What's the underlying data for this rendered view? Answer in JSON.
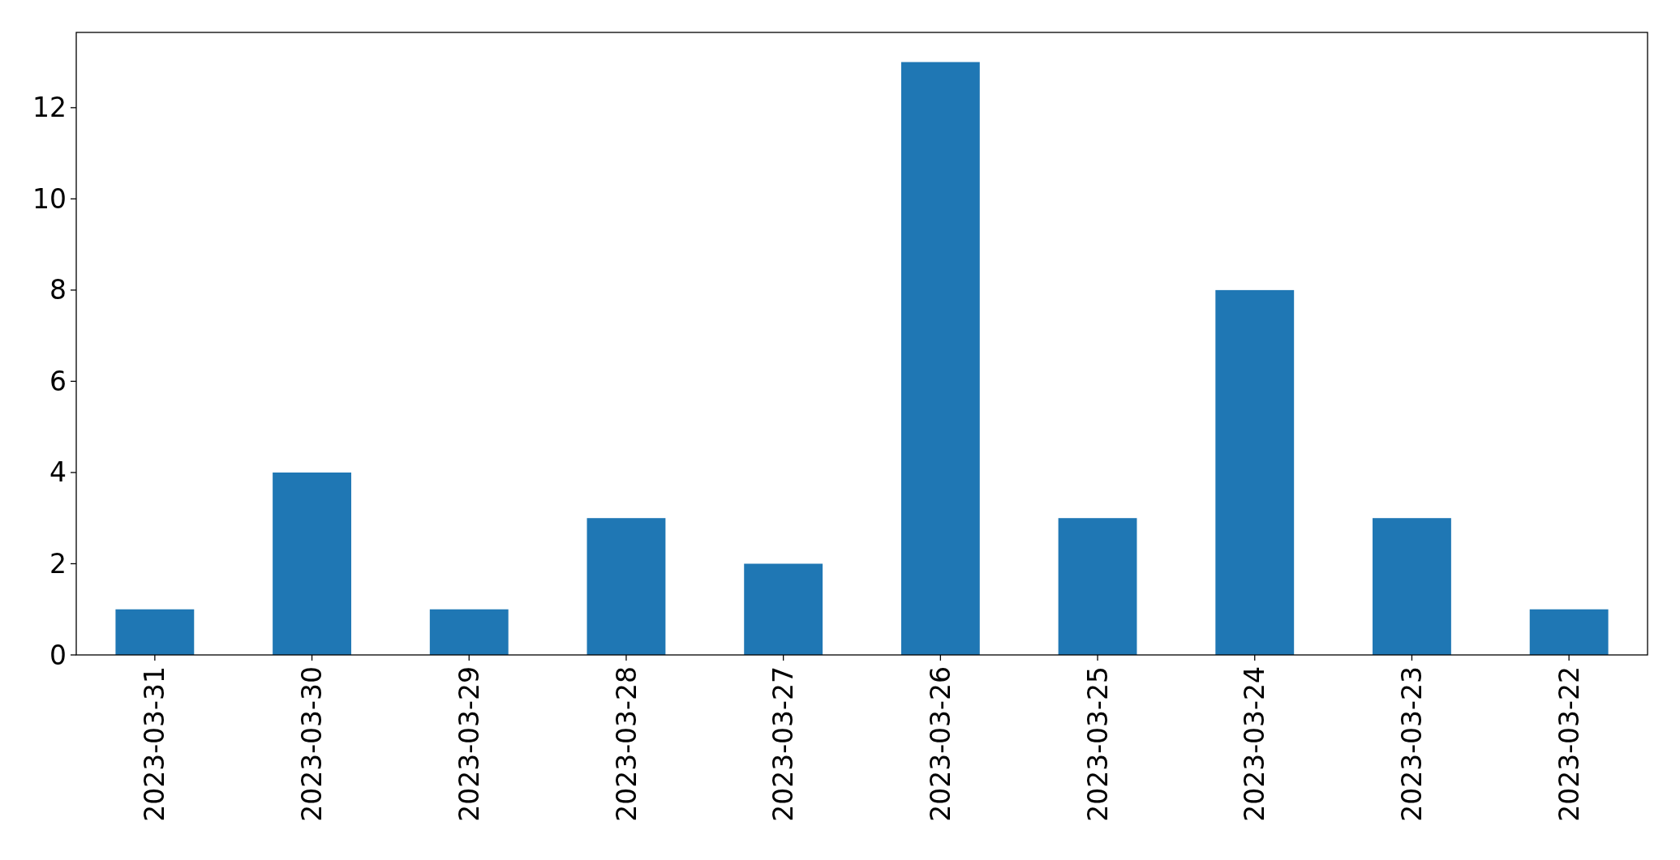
{
  "chart_data": {
    "type": "bar",
    "categories": [
      "2023-03-31",
      "2023-03-30",
      "2023-03-29",
      "2023-03-28",
      "2023-03-27",
      "2023-03-26",
      "2023-03-25",
      "2023-03-24",
      "2023-03-23",
      "2023-03-22"
    ],
    "values": [
      1,
      4,
      1,
      3,
      2,
      13,
      3,
      8,
      3,
      1
    ],
    "color": "#1f77b4",
    "ylim": [
      0,
      13.65
    ],
    "yticks": [
      0,
      2,
      4,
      6,
      8,
      10,
      12
    ],
    "grid": false
  }
}
